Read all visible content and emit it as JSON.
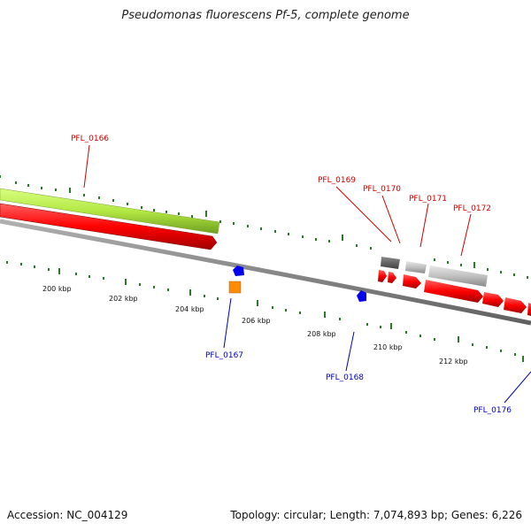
{
  "title": "Pseudomonas fluorescens Pf-5, complete genome",
  "footer": {
    "accession": "Accession: NC_004129",
    "summary": "Topology: circular; Length: 7,074,893 bp; Genes: 6,226"
  },
  "scale_labels": [
    "200 kbp",
    "202 kbp",
    "204 kbp",
    "206 kbp",
    "208 kbp",
    "210 kbp",
    "212 kbp"
  ],
  "gene_labels_forward": [
    "PFL_0166",
    "PFL_0169",
    "PFL_0170",
    "PFL_0171",
    "PFL_0172"
  ],
  "gene_labels_reverse": [
    "PFL_0167",
    "PFL_0168",
    "PFL_0176"
  ],
  "colors": {
    "forward_label": "#cc0000",
    "reverse_label": "#0000bb",
    "cds_forward": "#ff0000",
    "cds_reverse": "#0000ee",
    "gene_feature": "#b3e843",
    "backbone": "#888888",
    "tick": "#2a7a2a",
    "orange_feature": "#ff8c00",
    "grey_feature": "#c0c0c0",
    "dark_feature": "#606060"
  }
}
